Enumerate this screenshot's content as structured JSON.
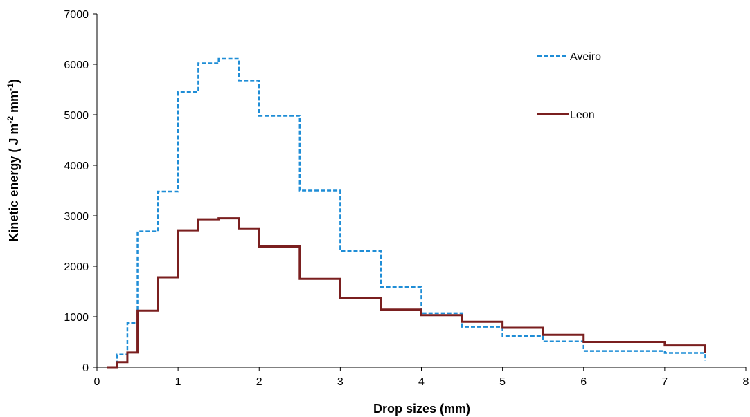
{
  "chart_data": {
    "type": "line",
    "subtype": "step",
    "xlabel": "Drop sizes (mm)",
    "ylabel": {
      "prefix": "Kinetic energy ( J m",
      "sup1": "-2",
      "mid": " mm",
      "sup2": "-1",
      "suffix": ")"
    },
    "xlim": [
      0,
      8
    ],
    "ylim": [
      0,
      7000
    ],
    "x_ticks": [
      0,
      1,
      2,
      3,
      4,
      5,
      6,
      7,
      8
    ],
    "y_ticks": [
      0,
      1000,
      2000,
      3000,
      4000,
      5000,
      6000,
      7000
    ],
    "grid": false,
    "legend_position": "top-right",
    "series": [
      {
        "name": "Aveiro",
        "color": "#1f8dd6",
        "style": "dashed",
        "bin_edges": [
          0.125,
          0.25,
          0.375,
          0.5,
          0.75,
          1.0,
          1.25,
          1.5,
          1.75,
          2.0,
          2.5,
          3.0,
          3.5,
          4.0,
          4.5,
          5.0,
          5.5,
          6.0,
          6.5,
          7.0,
          7.5
        ],
        "values": [
          0,
          250,
          880,
          2690,
          3480,
          5450,
          6020,
          6110,
          5680,
          4980,
          3500,
          2300,
          1590,
          1070,
          800,
          620,
          510,
          320,
          320,
          280
        ]
      },
      {
        "name": "Leon",
        "color": "#7a1f1f",
        "style": "solid",
        "bin_edges": [
          0.125,
          0.25,
          0.375,
          0.5,
          0.75,
          1.0,
          1.25,
          1.5,
          1.75,
          2.0,
          2.5,
          3.0,
          3.5,
          4.0,
          4.5,
          5.0,
          5.5,
          6.0,
          6.5,
          7.0,
          7.5
        ],
        "values": [
          0,
          100,
          290,
          1120,
          1780,
          2710,
          2930,
          2950,
          2750,
          2390,
          1750,
          1370,
          1140,
          1030,
          900,
          780,
          640,
          500,
          500,
          430
        ]
      }
    ]
  }
}
